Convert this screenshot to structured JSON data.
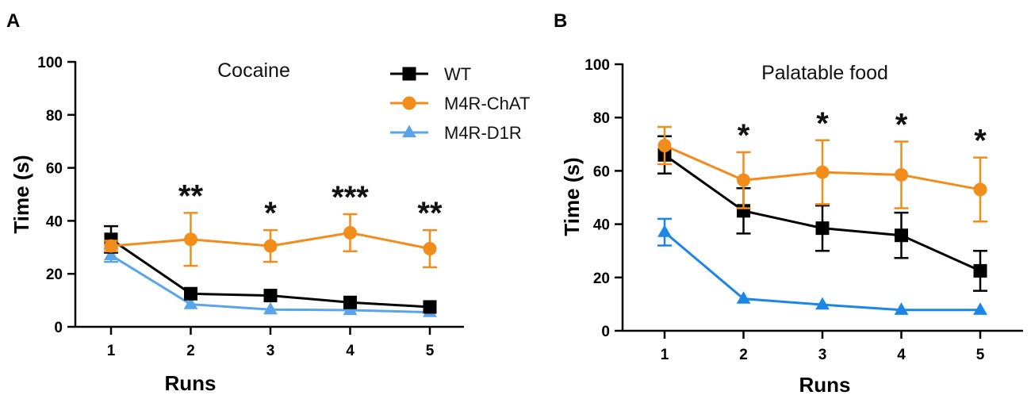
{
  "chart_data": [
    {
      "type": "line",
      "panel": "A",
      "title": "Cocaine",
      "xlabel": "Runs",
      "ylabel": "Time (s)",
      "ylim": [
        0,
        100
      ],
      "yticks": [
        0,
        20,
        40,
        60,
        80,
        100
      ],
      "categories": [
        "1",
        "2",
        "3",
        "4",
        "5"
      ],
      "legend": "top-right",
      "series": [
        {
          "name": "WT",
          "color": "#000000",
          "marker": "square",
          "values": [
            33,
            12.5,
            11.8,
            9.2,
            7.5
          ],
          "errors": [
            5,
            0,
            0,
            0,
            0
          ]
        },
        {
          "name": "M4R-ChAT",
          "color": "#f28c1b",
          "marker": "circle",
          "values": [
            30.5,
            33,
            30.5,
            35.5,
            29.5
          ],
          "errors": [
            2,
            10,
            6,
            7,
            7
          ]
        },
        {
          "name": "M4R-D1R",
          "color": "#5aa5ea",
          "marker": "triangle",
          "values": [
            27,
            8.5,
            6.5,
            6.3,
            5.5
          ],
          "errors": [
            2.5,
            0,
            0,
            0,
            0
          ]
        }
      ],
      "significance": [
        "",
        "**",
        "*",
        "***",
        "**"
      ]
    },
    {
      "type": "line",
      "panel": "B",
      "title": "Palatable food",
      "xlabel": "Runs",
      "ylabel": "Time (s)",
      "ylim": [
        0,
        100
      ],
      "yticks": [
        0,
        20,
        40,
        60,
        80,
        100
      ],
      "categories": [
        "1",
        "2",
        "3",
        "4",
        "5"
      ],
      "series": [
        {
          "name": "WT",
          "color": "#000000",
          "marker": "square",
          "values": [
            66,
            45,
            38.5,
            35.8,
            22.5
          ],
          "errors": [
            7,
            8.5,
            8.5,
            8.5,
            7.5
          ]
        },
        {
          "name": "M4R-ChAT",
          "color": "#f28c1b",
          "marker": "circle",
          "values": [
            69.5,
            56.5,
            59.5,
            58.5,
            53
          ],
          "errors": [
            7,
            10.5,
            12,
            12.5,
            12
          ]
        },
        {
          "name": "M4R-D1R",
          "color": "#1c86e6",
          "marker": "triangle",
          "values": [
            37,
            12,
            9.8,
            7.8,
            7.8
          ],
          "errors": [
            5,
            0,
            0,
            0,
            0
          ]
        }
      ],
      "significance": [
        "",
        "*",
        "*",
        "*",
        "*"
      ]
    }
  ]
}
